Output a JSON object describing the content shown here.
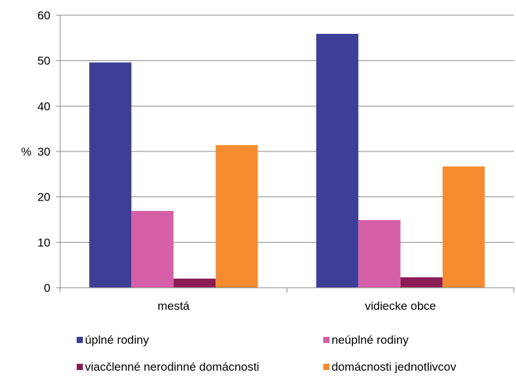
{
  "chart_data": {
    "type": "bar",
    "ylabel": "%",
    "ylim": [
      0,
      60
    ],
    "yticks": [
      0,
      10,
      20,
      30,
      40,
      50,
      60
    ],
    "grid": true,
    "categories": [
      "mestá",
      "vidiecke obce"
    ],
    "series": [
      {
        "name": "úplné rodiny",
        "color": "#3d3f97",
        "values": [
          49.6,
          55.9
        ]
      },
      {
        "name": "neúplné rodiny",
        "color": "#d660a8",
        "values": [
          16.9,
          14.9
        ]
      },
      {
        "name": "viacčlenné nerodinné domácnosti",
        "color": "#8b1d55",
        "values": [
          2.0,
          2.3
        ]
      },
      {
        "name": "domácnosti jednotlivcov",
        "color": "#f68b2f",
        "values": [
          31.4,
          26.7
        ]
      }
    ],
    "legend_position": "bottom"
  }
}
